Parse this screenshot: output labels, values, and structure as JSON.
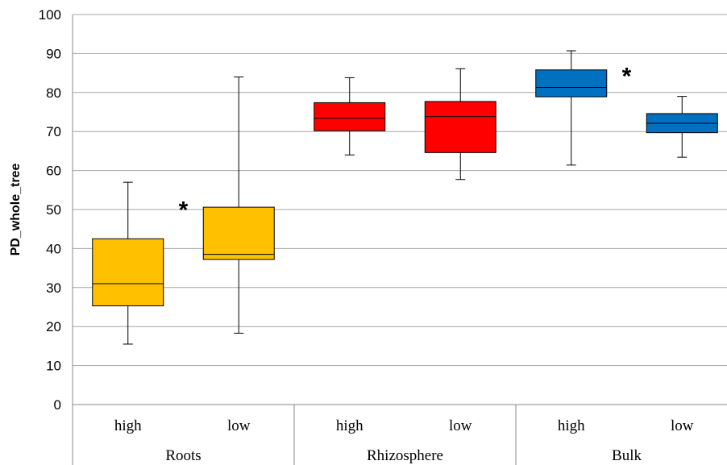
{
  "chart_data": {
    "type": "boxplot",
    "ylabel": "PD_whole_tree",
    "ylim": [
      0,
      100
    ],
    "yticks": [
      0,
      10,
      20,
      30,
      40,
      50,
      60,
      70,
      80,
      90,
      100
    ],
    "grid": true,
    "groups": [
      {
        "name": "Roots",
        "categories": [
          "high",
          "low"
        ]
      },
      {
        "name": "Rhizosphere",
        "categories": [
          "high",
          "low"
        ]
      },
      {
        "name": "Bulk",
        "categories": [
          "high",
          "low"
        ]
      }
    ],
    "boxes": [
      {
        "group": "Roots",
        "category": "high",
        "min": 15.5,
        "q1": 25.3,
        "median": 31.0,
        "q3": 42.5,
        "max": 57.0,
        "color": "#FFC000",
        "significance": "*"
      },
      {
        "group": "Roots",
        "category": "low",
        "min": 18.3,
        "q1": 37.2,
        "median": 38.5,
        "q3": 50.6,
        "max": 84.0,
        "color": "#FFC000"
      },
      {
        "group": "Rhizosphere",
        "category": "high",
        "min": 64.0,
        "q1": 70.2,
        "median": 73.4,
        "q3": 77.4,
        "max": 83.8,
        "color": "#FF0000"
      },
      {
        "group": "Rhizosphere",
        "category": "low",
        "min": 57.7,
        "q1": 64.6,
        "median": 73.8,
        "q3": 77.7,
        "max": 86.1,
        "color": "#FF0000"
      },
      {
        "group": "Bulk",
        "category": "high",
        "min": 61.4,
        "q1": 78.9,
        "median": 81.3,
        "q3": 85.8,
        "max": 90.7,
        "color": "#0070C0",
        "significance": "*"
      },
      {
        "group": "Bulk",
        "category": "low",
        "min": 63.4,
        "q1": 69.7,
        "median": 72.1,
        "q3": 74.6,
        "max": 79.0,
        "color": "#0070C0"
      }
    ]
  }
}
